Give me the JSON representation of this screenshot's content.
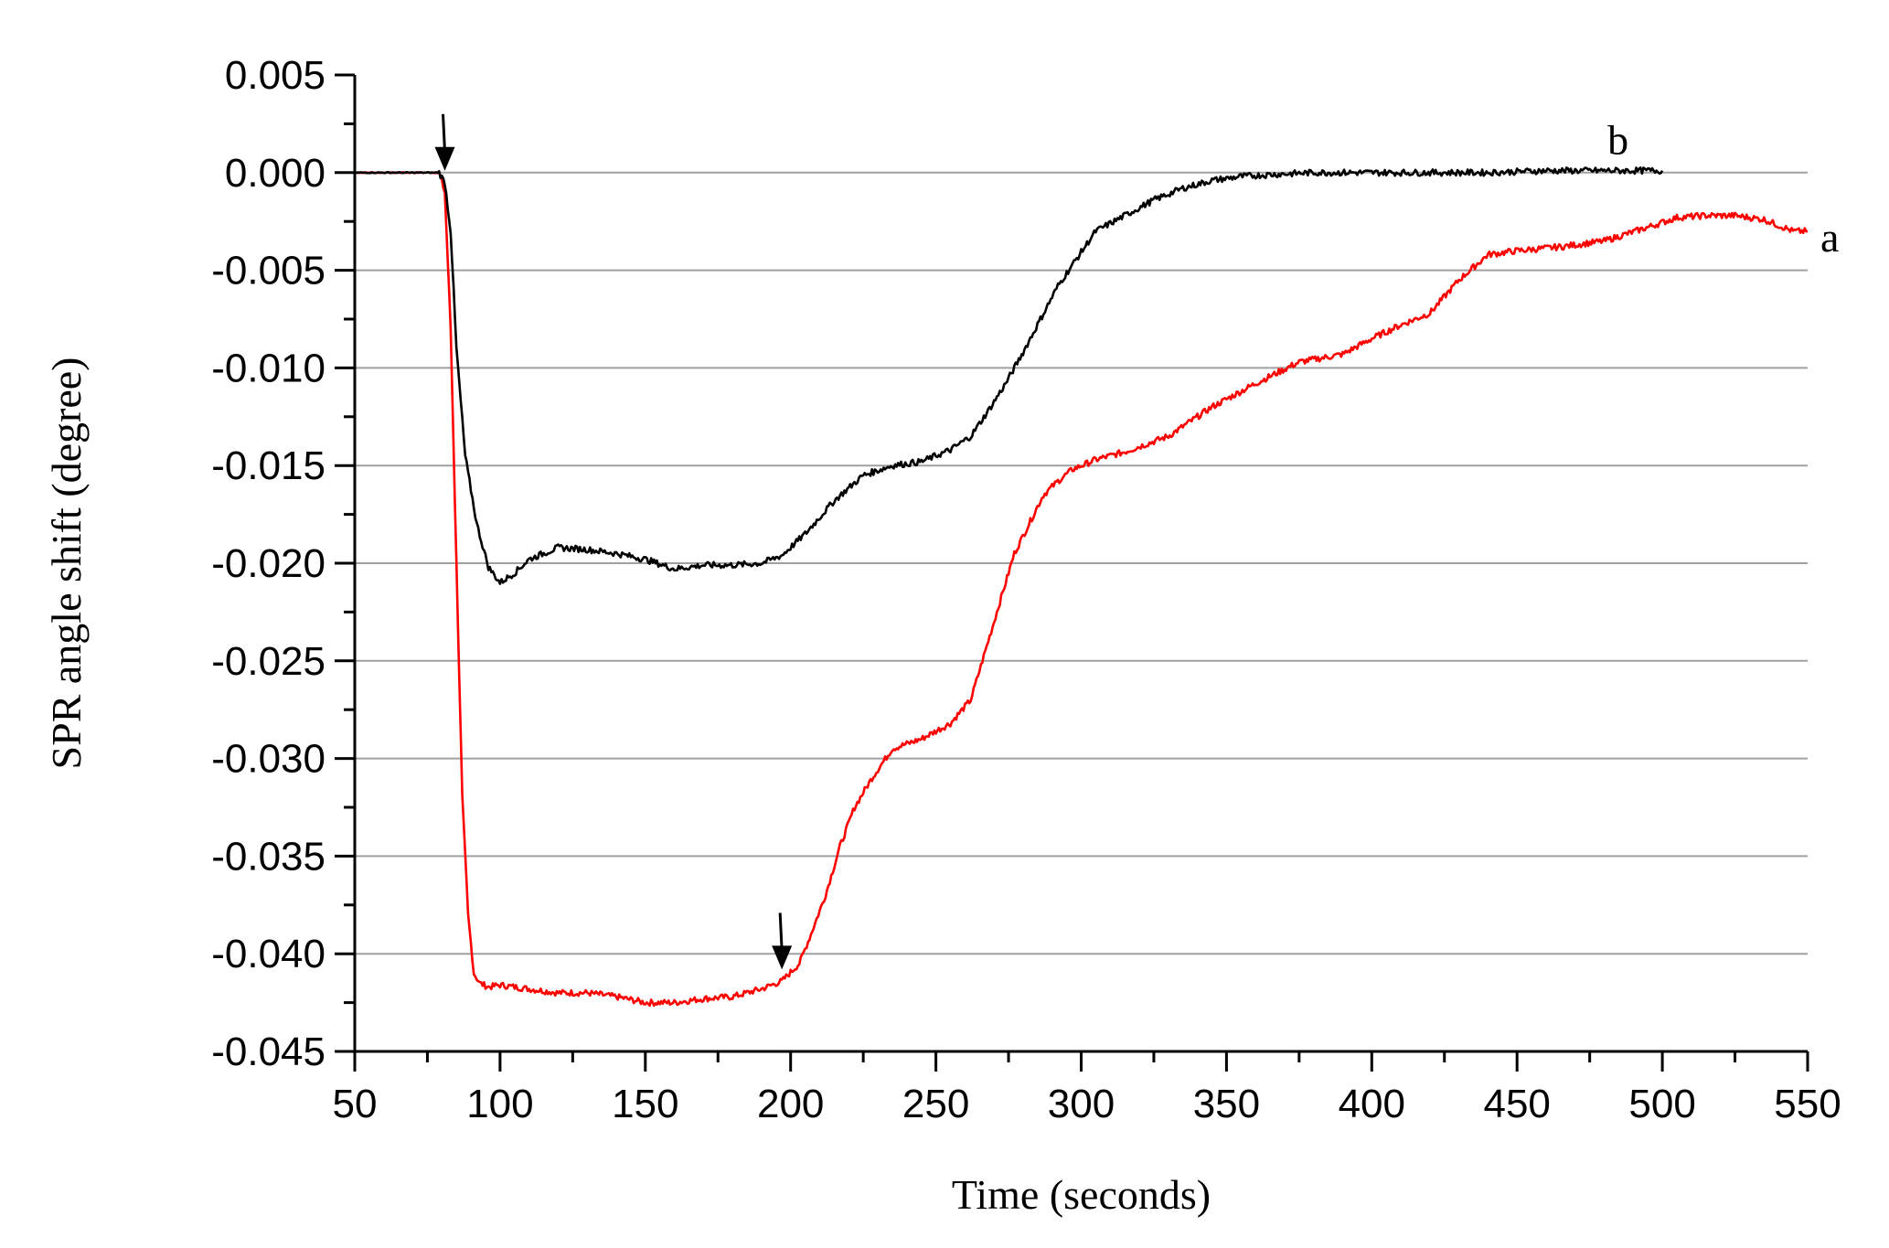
{
  "chart_data": {
    "type": "line",
    "title": "",
    "xlabel": "Time (seconds)",
    "ylabel": "SPR angle shift (degree)",
    "xlim": [
      50,
      550
    ],
    "ylim": [
      -0.045,
      0.005
    ],
    "x_ticks": [
      "50",
      "100",
      "150",
      "200",
      "250",
      "300",
      "350",
      "400",
      "450",
      "500",
      "550"
    ],
    "y_ticks": [
      "0.005",
      "0.000",
      "-0.005",
      "-0.010",
      "-0.015",
      "-0.020",
      "-0.025",
      "-0.030",
      "-0.035",
      "-0.040",
      "-0.045"
    ],
    "grid": "horizontal",
    "legend": "none",
    "series": [
      {
        "name": "a",
        "color": "#ff0000",
        "x": [
          50,
          60,
          70,
          79,
          81,
          83,
          85,
          87,
          89,
          91,
          93,
          96,
          100,
          110,
          120,
          130,
          140,
          150,
          160,
          170,
          180,
          190,
          197,
          203,
          207,
          212,
          217,
          222,
          228,
          235,
          245,
          255,
          262,
          267,
          272,
          277,
          282,
          287,
          292,
          297,
          305,
          315,
          330,
          345,
          360,
          375,
          390,
          400,
          410,
          420,
          430,
          440,
          450,
          465,
          480,
          495,
          505,
          515,
          525,
          535,
          540,
          545,
          550
        ],
        "y": [
          0.0,
          0.0,
          0.0,
          0.0,
          -0.001,
          -0.008,
          -0.02,
          -0.032,
          -0.038,
          -0.041,
          -0.0415,
          -0.0417,
          -0.0416,
          -0.0418,
          -0.042,
          -0.042,
          -0.0422,
          -0.0425,
          -0.0425,
          -0.0423,
          -0.0422,
          -0.0418,
          -0.0414,
          -0.0405,
          -0.039,
          -0.037,
          -0.0345,
          -0.0325,
          -0.031,
          -0.0295,
          -0.029,
          -0.0282,
          -0.027,
          -0.0245,
          -0.022,
          -0.0195,
          -0.018,
          -0.0165,
          -0.0158,
          -0.0152,
          -0.0147,
          -0.0143,
          -0.0135,
          -0.012,
          -0.0108,
          -0.0097,
          -0.0093,
          -0.0085,
          -0.0078,
          -0.0072,
          -0.0055,
          -0.0042,
          -0.004,
          -0.0038,
          -0.0035,
          -0.0028,
          -0.0023,
          -0.0022,
          -0.0022,
          -0.0024,
          -0.0027,
          -0.003,
          -0.003
        ]
      },
      {
        "name": "b",
        "color": "#000000",
        "x": [
          50,
          60,
          70,
          79,
          81,
          83,
          85,
          88,
          92,
          96,
          100,
          105,
          110,
          120,
          130,
          140,
          150,
          160,
          170,
          180,
          190,
          197,
          205,
          215,
          225,
          235,
          245,
          255,
          262,
          268,
          274,
          280,
          286,
          292,
          298,
          305,
          315,
          325,
          335,
          345,
          355,
          365,
          380,
          400,
          420,
          440,
          460,
          480,
          500
        ],
        "y": [
          0.0,
          0.0,
          0.0,
          0.0,
          -0.0005,
          -0.003,
          -0.009,
          -0.0145,
          -0.018,
          -0.0202,
          -0.021,
          -0.0205,
          -0.0198,
          -0.0192,
          -0.0193,
          -0.0195,
          -0.0198,
          -0.0203,
          -0.0201,
          -0.0201,
          -0.02,
          -0.0196,
          -0.0185,
          -0.0168,
          -0.0155,
          -0.015,
          -0.0148,
          -0.0142,
          -0.0135,
          -0.0122,
          -0.0108,
          -0.0092,
          -0.0075,
          -0.0058,
          -0.0045,
          -0.003,
          -0.0022,
          -0.0014,
          -0.0008,
          -0.0004,
          -0.0002,
          -0.0001,
          0.0,
          0.0,
          0.0,
          0.0,
          0.0001,
          0.0001,
          0.0001
        ]
      }
    ],
    "annotations": [
      {
        "type": "arrow",
        "x": 81,
        "y": 0.0
      },
      {
        "type": "arrow",
        "x": 197,
        "y": -0.0409
      }
    ]
  }
}
